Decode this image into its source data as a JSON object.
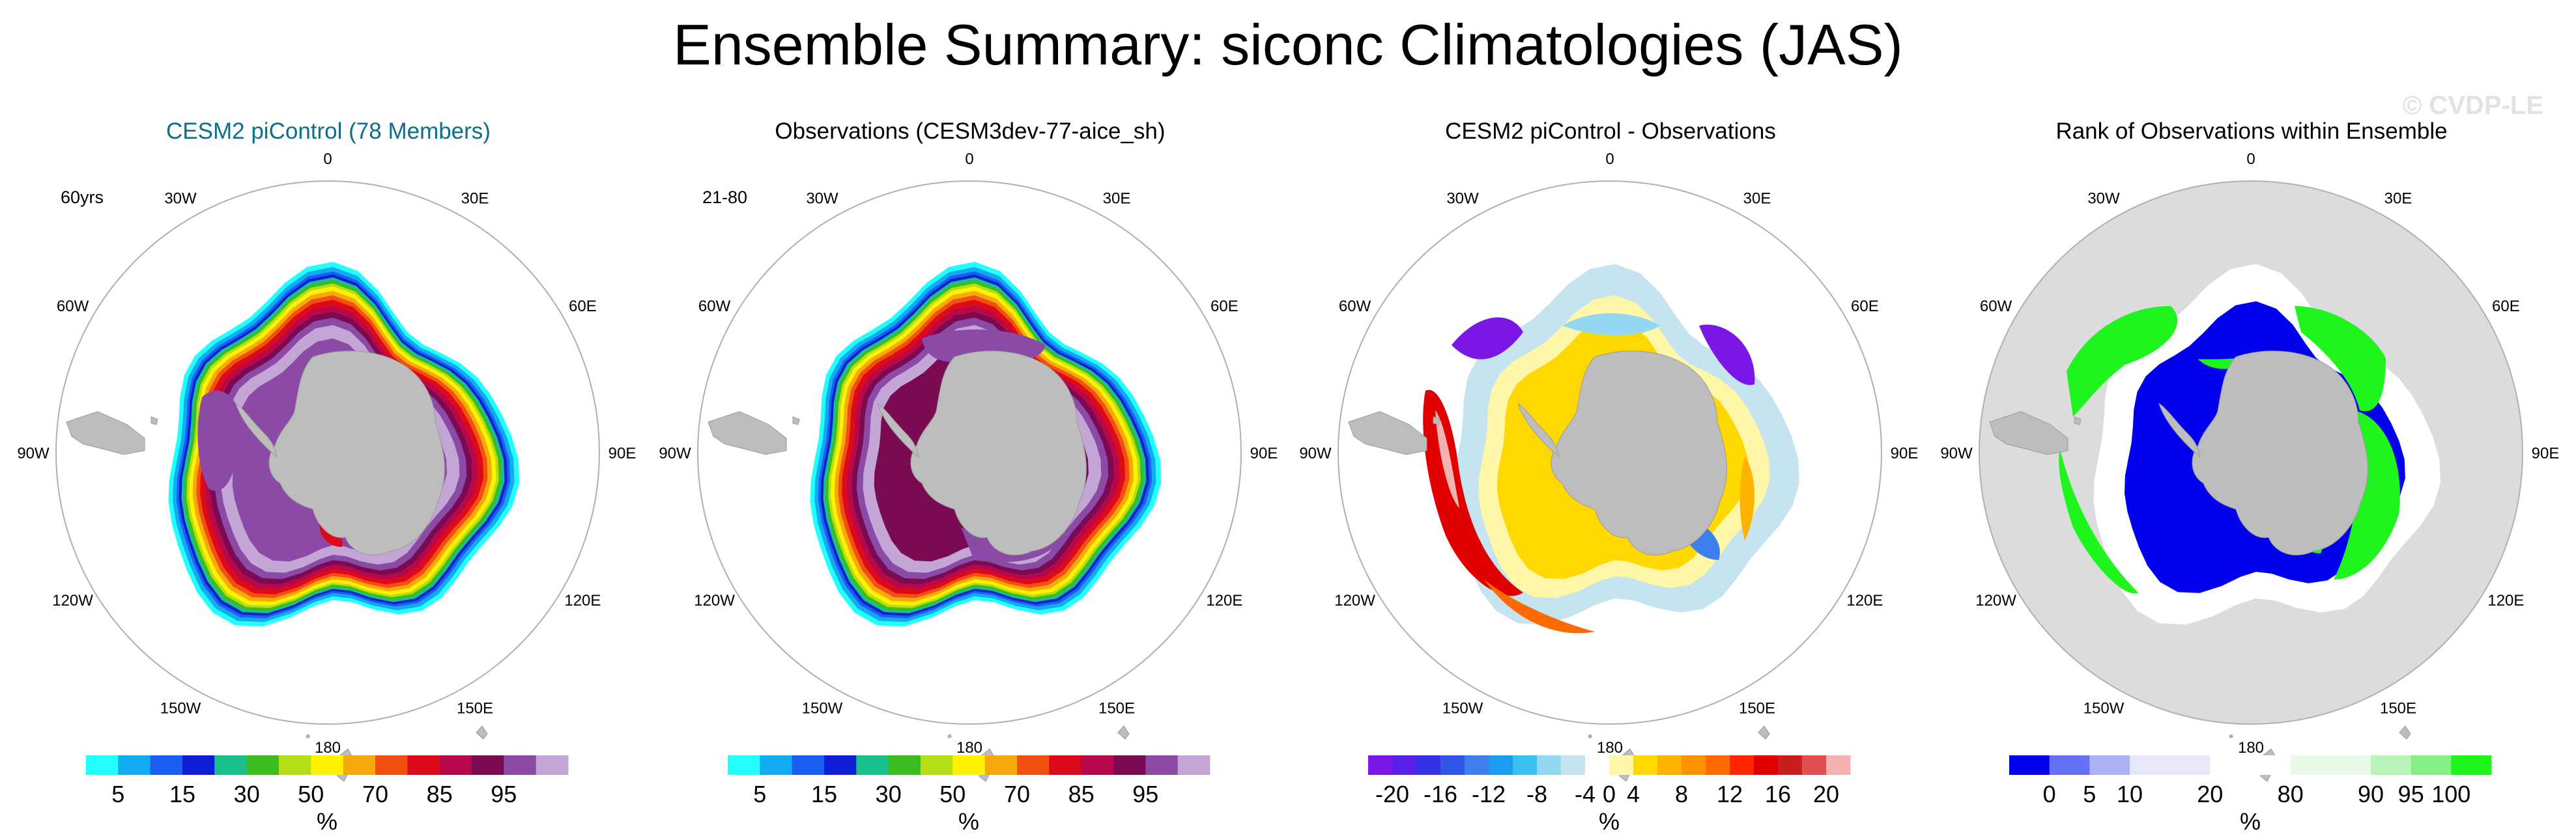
{
  "title": "Ensemble Summary: siconc Climatologies (JAS)",
  "watermark": "© CVDP-LE",
  "chart_data": [
    {
      "type": "heatmap",
      "title": "CESM2 piControl (78 Members)",
      "title_color": "#0d6e8c",
      "label": "60yrs",
      "projection": "south-polar-stereographic",
      "lon_labels": [
        "0",
        "30E",
        "60E",
        "90E",
        "120E",
        "150E",
        "180",
        "150W",
        "120W",
        "90W",
        "60W",
        "30W"
      ],
      "field": "concentration",
      "variant": "model",
      "colorbar": {
        "colors": [
          "#22ffff",
          "#12aaf0",
          "#1b5ff0",
          "#0e1fd6",
          "#1abf8c",
          "#3cbd1f",
          "#b6de16",
          "#fff200",
          "#f6a90c",
          "#f1500f",
          "#dc0a1a",
          "#b6084a",
          "#7a0a52",
          "#8b4aa6",
          "#c4a6d6"
        ],
        "tick_labels": [
          "5",
          "15",
          "30",
          "50",
          "70",
          "85",
          "95"
        ],
        "tick_boundaries": [
          1,
          3,
          5,
          7,
          9,
          11,
          13
        ],
        "unit": "%"
      }
    },
    {
      "type": "heatmap",
      "title": "Observations (CESM3dev-77-aice_sh)",
      "title_color": "#000000",
      "label": "21-80",
      "projection": "south-polar-stereographic",
      "lon_labels": [
        "0",
        "30E",
        "60E",
        "90E",
        "120E",
        "150E",
        "180",
        "150W",
        "120W",
        "90W",
        "60W",
        "30W"
      ],
      "field": "concentration",
      "variant": "obs",
      "colorbar": {
        "colors": [
          "#22ffff",
          "#12aaf0",
          "#1b5ff0",
          "#0e1fd6",
          "#1abf8c",
          "#3cbd1f",
          "#b6de16",
          "#fff200",
          "#f6a90c",
          "#f1500f",
          "#dc0a1a",
          "#b6084a",
          "#7a0a52",
          "#8b4aa6",
          "#c4a6d6"
        ],
        "tick_labels": [
          "5",
          "15",
          "30",
          "50",
          "70",
          "85",
          "95"
        ],
        "tick_boundaries": [
          1,
          3,
          5,
          7,
          9,
          11,
          13
        ],
        "unit": "%"
      }
    },
    {
      "type": "heatmap",
      "title": "CESM2 piControl - Observations",
      "title_color": "#000000",
      "label": "",
      "projection": "south-polar-stereographic",
      "lon_labels": [
        "0",
        "30E",
        "60E",
        "90E",
        "120E",
        "150E",
        "180",
        "150W",
        "120W",
        "90W",
        "60W",
        "30W"
      ],
      "field": "difference",
      "variant": "diff",
      "colorbar": {
        "colors": [
          "#7a17e6",
          "#5a1fe8",
          "#3430e6",
          "#2f56e6",
          "#3d7fec",
          "#1d9df2",
          "#3cc0f2",
          "#93d8f2",
          "#c6e3f0",
          "#ffffff",
          "#fff7a8",
          "#ffd800",
          "#ffb300",
          "#ff9200",
          "#ff6a00",
          "#ff2600",
          "#e00000",
          "#c81e1e",
          "#e05050",
          "#f5b0b0"
        ],
        "tick_labels": [
          "-20",
          "-16",
          "-12",
          "-8",
          "-4",
          "0",
          "4",
          "8",
          "12",
          "16",
          "20"
        ],
        "tick_boundaries": [
          1,
          3,
          5,
          7,
          9,
          10,
          11,
          13,
          15,
          17,
          19
        ],
        "unit": "%"
      }
    },
    {
      "type": "heatmap",
      "title": "Rank of Observations within Ensemble",
      "title_color": "#000000",
      "label": "",
      "projection": "south-polar-stereographic",
      "lon_labels": [
        "0",
        "30E",
        "60E",
        "90E",
        "120E",
        "150E",
        "180",
        "150W",
        "120W",
        "90W",
        "60W",
        "30W"
      ],
      "field": "rank",
      "variant": "rank",
      "colorbar": {
        "colors": [
          "#0000ee",
          "#6670f2",
          "#aab2f2",
          "#e6e8fa",
          "#e6e8fa",
          "#ffffff",
          "#ffffff",
          "#e6fae6",
          "#e6fae6",
          "#b8f5b8",
          "#86ef86",
          "#1df51d"
        ],
        "tick_labels": [
          "0",
          "5",
          "10",
          "20",
          "80",
          "90",
          "95",
          "100"
        ],
        "tick_boundaries": [
          1,
          2,
          3,
          5,
          7,
          9,
          10,
          11
        ],
        "unit": "%"
      }
    }
  ]
}
